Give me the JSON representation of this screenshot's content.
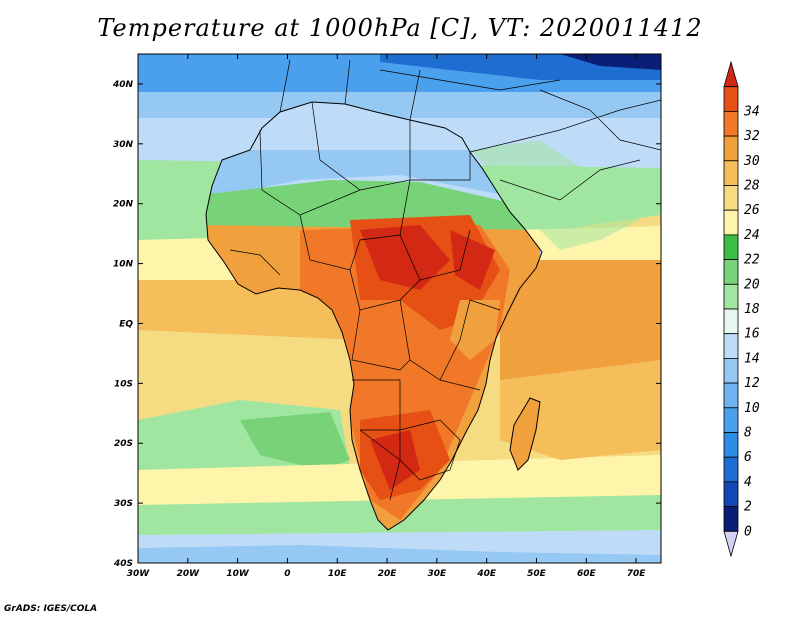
{
  "title": "Temperature at 1000hPa [C], VT: 2020011412",
  "credit": "GrADS: IGES/COLA",
  "map": {
    "lon_range": [
      -30,
      75
    ],
    "lat_range": [
      -40,
      45
    ],
    "lat_ticks": [
      {
        "value": 40,
        "label": "40N"
      },
      {
        "value": 30,
        "label": "30N"
      },
      {
        "value": 20,
        "label": "20N"
      },
      {
        "value": 10,
        "label": "10N"
      },
      {
        "value": 0,
        "label": "EQ"
      },
      {
        "value": -10,
        "label": "10S"
      },
      {
        "value": -20,
        "label": "20S"
      },
      {
        "value": -30,
        "label": "30S"
      },
      {
        "value": -40,
        "label": "40S"
      }
    ],
    "lon_ticks": [
      {
        "value": -30,
        "label": "30W"
      },
      {
        "value": -20,
        "label": "20W"
      },
      {
        "value": -10,
        "label": "10W"
      },
      {
        "value": 0,
        "label": "0"
      },
      {
        "value": 10,
        "label": "10E"
      },
      {
        "value": 20,
        "label": "20E"
      },
      {
        "value": 30,
        "label": "30E"
      },
      {
        "value": 40,
        "label": "40E"
      },
      {
        "value": 50,
        "label": "50E"
      },
      {
        "value": 60,
        "label": "60E"
      },
      {
        "value": 70,
        "label": "70E"
      }
    ]
  },
  "colorbar": {
    "levels": [
      "0",
      "2",
      "4",
      "6",
      "8",
      "10",
      "12",
      "14",
      "16",
      "18",
      "20",
      "22",
      "24",
      "26",
      "28",
      "30",
      "32",
      "34"
    ],
    "colors": [
      "#0a1e78",
      "#1446b4",
      "#1e6ed2",
      "#2d8ce6",
      "#4ba0ee",
      "#6eb4f0",
      "#96c8f4",
      "#bedcf8",
      "#e6f8f0",
      "#a0e6a0",
      "#78d278",
      "#3cbe46",
      "#fff5aa",
      "#f5dc82",
      "#f5be5a",
      "#f0a03c",
      "#f07828",
      "#e65014",
      "#d22814"
    ],
    "under_color": "#d2d2f5"
  }
}
